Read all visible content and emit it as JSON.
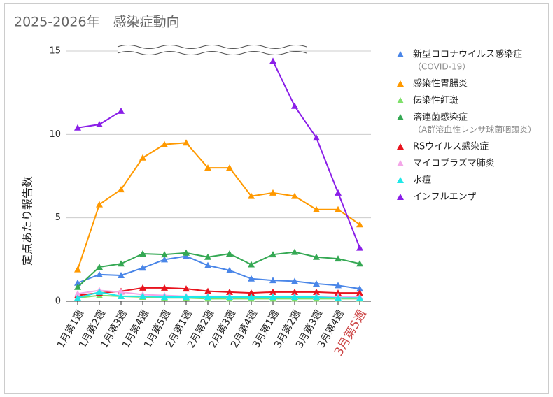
{
  "chart_data": {
    "type": "line",
    "title": "2025-2026年　感染症動向",
    "y_label": "定点あたり報告数",
    "categories": [
      "1月第1週",
      "1月第2週",
      "1月第3週",
      "1月第4週",
      "1月第5週",
      "2月第1週",
      "2月第2週",
      "2月第3週",
      "2月第4週",
      "3月第1週",
      "3月第2週",
      "3月第3週",
      "3月第4週",
      "3月第5週"
    ],
    "ylim": [
      0,
      15
    ],
    "yticks": [
      0,
      5,
      10,
      15
    ],
    "grid": true,
    "legend": "right",
    "series": [
      {
        "name": "新型コロナウイルス感染症",
        "note": "（COVID-19）",
        "color": "#4a86e8",
        "values": [
          1.1,
          1.6,
          1.55,
          2.0,
          2.5,
          2.7,
          2.15,
          1.85,
          1.35,
          1.25,
          1.2,
          1.05,
          0.95,
          0.75
        ]
      },
      {
        "name": "感染性胃腸炎",
        "color": "#ff9900",
        "values": [
          1.9,
          5.8,
          6.7,
          8.6,
          9.4,
          9.5,
          8.0,
          8.0,
          6.3,
          6.5,
          6.3,
          5.5,
          5.5,
          4.6
        ]
      },
      {
        "name": "伝染性紅斑",
        "color": "#7ee06a",
        "values": [
          0.2,
          0.35,
          0.3,
          0.25,
          0.2,
          0.2,
          0.15,
          0.15,
          0.15,
          0.15,
          0.15,
          0.15,
          0.15,
          0.15
        ]
      },
      {
        "name": "溶連菌感染症",
        "note": "（A群溶血性レンサ球菌咽頭炎）",
        "color": "#34a853",
        "values": [
          0.85,
          2.05,
          2.25,
          2.85,
          2.8,
          2.9,
          2.65,
          2.85,
          2.2,
          2.8,
          2.95,
          2.65,
          2.55,
          2.25
        ]
      },
      {
        "name": "RSウイルス感染症",
        "color": "#e8141e",
        "values": [
          0.35,
          0.5,
          0.6,
          0.8,
          0.8,
          0.75,
          0.6,
          0.55,
          0.5,
          0.55,
          0.55,
          0.55,
          0.5,
          0.5
        ]
      },
      {
        "name": "マイコプラズマ肺炎",
        "color": "#f4a6e8",
        "values": [
          0.45,
          0.65,
          0.55,
          0.4,
          0.35,
          0.3,
          0.3,
          0.3,
          0.25,
          0.3,
          0.3,
          0.3,
          0.3,
          0.25
        ]
      },
      {
        "name": "水痘",
        "color": "#1ee8e8",
        "values": [
          0.2,
          0.55,
          0.3,
          0.3,
          0.25,
          0.25,
          0.25,
          0.25,
          0.25,
          0.25,
          0.25,
          0.25,
          0.2,
          0.2
        ]
      },
      {
        "name": "インフルエンザ",
        "color": "#8a1ee8",
        "values": [
          10.4,
          10.6,
          11.4,
          null,
          null,
          null,
          null,
          null,
          null,
          14.4,
          11.7,
          9.8,
          6.5,
          3.2
        ]
      }
    ]
  }
}
